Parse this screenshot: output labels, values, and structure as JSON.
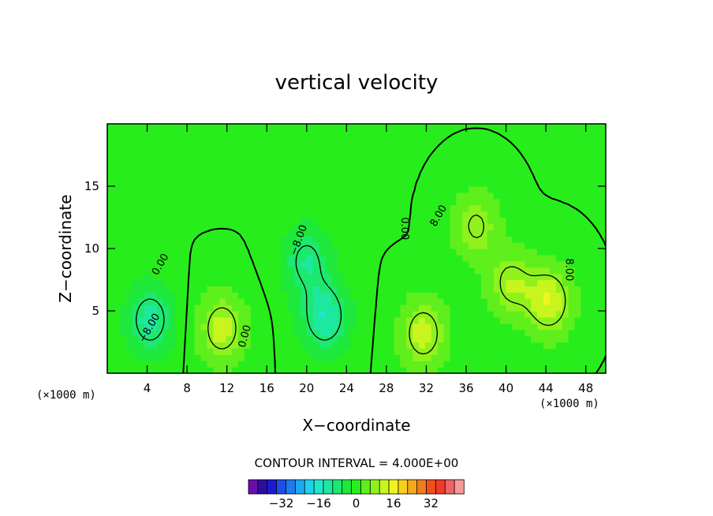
{
  "chart_data": {
    "type": "contour",
    "title": "vertical velocity",
    "xlabel": "X−coordinate",
    "ylabel": "Z−coordinate",
    "x_unit_left": "(×1000 m)",
    "x_unit_right": "(×1000 m)",
    "xlim": [
      0,
      50
    ],
    "ylim": [
      0,
      20
    ],
    "x_ticks": [
      "4",
      "8",
      "12",
      "16",
      "20",
      "24",
      "28",
      "32",
      "36",
      "40",
      "44",
      "48"
    ],
    "x_tick_values": [
      4,
      8,
      12,
      16,
      20,
      24,
      28,
      32,
      36,
      40,
      44,
      48
    ],
    "y_ticks": [
      "5",
      "10",
      "15"
    ],
    "y_tick_values": [
      5,
      10,
      15
    ],
    "contour_interval_text": "CONTOUR INTERVAL = 4.000E+00",
    "contour_interval": 4,
    "contour_labels": [
      {
        "text": "8.00",
        "x": 33.5,
        "y": 12.5,
        "rot": -60
      },
      {
        "text": "0.00",
        "x": 29.5,
        "y": 11.6,
        "rot": 90
      },
      {
        "text": "−8.00",
        "x": 19.5,
        "y": 10.6,
        "rot": -70
      },
      {
        "text": "0.00",
        "x": 5.6,
        "y": 8.6,
        "rot": -60
      },
      {
        "text": "−8.00",
        "x": 4.5,
        "y": 3.5,
        "rot": -60
      },
      {
        "text": "0.00",
        "x": 14.1,
        "y": 2.9,
        "rot": -75
      },
      {
        "text": "8.00",
        "x": 46.0,
        "y": 8.3,
        "rot": 90
      }
    ],
    "field_features": [
      {
        "kind": "updraft",
        "x": 11.5,
        "y": 3.6,
        "peak": 12
      },
      {
        "kind": "updraft",
        "x": 31.7,
        "y": 3.2,
        "peak": 12
      },
      {
        "kind": "updraft",
        "x": 44.3,
        "y": 5.8,
        "peak": 14
      },
      {
        "kind": "updraft",
        "x": 40.5,
        "y": 7.2,
        "peak": 10
      },
      {
        "kind": "updraft",
        "x": 37.0,
        "y": 11.8,
        "peak": 9
      },
      {
        "kind": "downdraft",
        "x": 21.8,
        "y": 4.6,
        "peak": -14
      },
      {
        "kind": "downdraft",
        "x": 20.0,
        "y": 9.0,
        "peak": -10
      },
      {
        "kind": "downdraft",
        "x": 4.3,
        "y": 4.3,
        "peak": -12
      }
    ],
    "colorbar": {
      "colors": [
        "#6a0dad",
        "#2a0ea0",
        "#1a1ad0",
        "#1e4de8",
        "#1e7aef",
        "#1ea8f0",
        "#1ed2ee",
        "#1ee8c8",
        "#1ee8a0",
        "#1de86f",
        "#1ee83c",
        "#28ed1c",
        "#5eef1c",
        "#8ff21d",
        "#c8f51d",
        "#eef51e",
        "#f5d01e",
        "#f5a81d",
        "#f27c1c",
        "#f04e1c",
        "#ef3a2a",
        "#ef6464",
        "#f59a9a"
      ],
      "labels": [
        "−32",
        "−16",
        "0",
        "16",
        "32"
      ],
      "label_values": [
        -32,
        -16,
        0,
        16,
        32
      ],
      "vmin": -46,
      "vmax": 46
    }
  }
}
